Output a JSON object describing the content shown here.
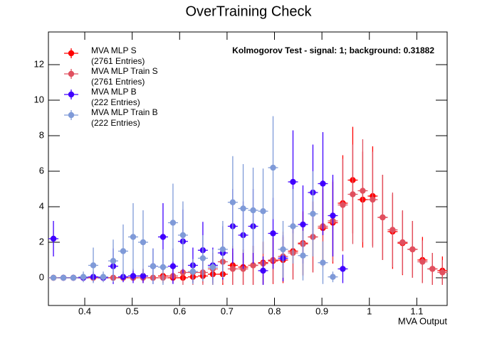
{
  "chart_data": {
    "type": "errorbar",
    "title": "OverTraining Check",
    "x_label": "MVA Output",
    "annotation": "Kolmogorov Test - signal: 1; background: 0.31882",
    "xlim": [
      0.3234,
      1.164
    ],
    "ylim": [
      -1.56,
      13.84
    ],
    "xticks": [
      0.4,
      0.5,
      0.6,
      0.7,
      0.8,
      0.9,
      1,
      1.1
    ],
    "yticks": [
      0,
      2,
      4,
      6,
      8,
      10,
      12
    ],
    "legend": "top-left",
    "x": [
      0.334,
      0.355,
      0.376,
      0.397,
      0.418,
      0.439,
      0.46,
      0.481,
      0.502,
      0.523,
      0.544,
      0.565,
      0.586,
      0.607,
      0.628,
      0.649,
      0.67,
      0.691,
      0.712,
      0.734,
      0.755,
      0.776,
      0.797,
      0.818,
      0.839,
      0.86,
      0.881,
      0.902,
      0.923,
      0.944,
      0.965,
      0.986,
      1.007,
      1.028,
      1.049,
      1.07,
      1.091,
      1.112,
      1.133,
      1.154
    ],
    "series": [
      {
        "name": "MVA MLP S",
        "entries": "(2761 Entries)",
        "color": "#ff0000",
        "values": [
          0,
          0,
          0,
          0,
          0,
          0,
          0,
          0,
          0,
          0.1,
          0,
          0.1,
          0,
          0,
          0.05,
          0.1,
          0.2,
          0.2,
          0.7,
          0.6,
          0.7,
          0.85,
          0.95,
          1.0,
          1.5,
          1.95,
          2.3,
          2.8,
          3.1,
          4.2,
          5.5,
          4.4,
          4.6,
          3.4,
          2.6,
          1.95,
          1.6,
          1.0,
          0.5,
          0.4
        ],
        "errors": [
          0,
          0,
          0,
          0,
          0,
          0,
          0,
          0,
          0,
          0.4,
          0,
          0.4,
          0,
          0,
          0.3,
          0.4,
          0.6,
          0.6,
          1.1,
          1.0,
          1.1,
          1.2,
          1.3,
          1.3,
          1.6,
          1.8,
          2.0,
          2.2,
          2.3,
          2.7,
          3.0,
          2.7,
          2.8,
          2.4,
          2.1,
          1.8,
          1.6,
          1.3,
          0.9,
          0.8
        ]
      },
      {
        "name": "MVA MLP Train S",
        "entries": "(2761 Entries)",
        "color": "#e0505f",
        "values": [
          0,
          0,
          0,
          0,
          0,
          0,
          0,
          0,
          0,
          0,
          0,
          0,
          0.1,
          0.3,
          0.3,
          0.3,
          0.5,
          0.9,
          0.5,
          0.5,
          0.7,
          0.8,
          1.0,
          1.2,
          1.4,
          1.9,
          2.3,
          2.9,
          3.2,
          4.1,
          4.7,
          4.9,
          4.4,
          3.4,
          2.7,
          2.0,
          1.6,
          0.9,
          0.5,
          0.3
        ],
        "errors": [
          0,
          0,
          0,
          0,
          0,
          0,
          0,
          0,
          0,
          0,
          0,
          0,
          0.4,
          0.7,
          0.7,
          0.7,
          0.9,
          1.2,
          0.9,
          0.9,
          1.1,
          1.2,
          1.3,
          1.4,
          1.5,
          1.8,
          2.0,
          2.2,
          2.3,
          2.6,
          2.8,
          2.9,
          2.7,
          2.4,
          2.1,
          1.8,
          1.6,
          1.2,
          0.9,
          0.7
        ]
      },
      {
        "name": "MVA MLP B",
        "entries": "(222 Entries)",
        "color": "#4000ff",
        "values": [
          2.2,
          0,
          0,
          0,
          0.05,
          0,
          0.65,
          0.05,
          0.1,
          0.1,
          0.65,
          2.3,
          0.65,
          2.05,
          0.7,
          1.55,
          0.7,
          1.4,
          2.9,
          2.4,
          2.9,
          0.4,
          2.5,
          1.1,
          5.4,
          3.0,
          4.8,
          5.3,
          3.5,
          0.5,
          null,
          null,
          null,
          null,
          null,
          null,
          null,
          null,
          null,
          null
        ],
        "errors": [
          1.0,
          0,
          0,
          0,
          0.3,
          0,
          1.0,
          0.3,
          0.4,
          0.4,
          1.0,
          1.9,
          1.0,
          1.8,
          1.0,
          1.6,
          1.0,
          1.5,
          2.1,
          1.9,
          2.1,
          0.8,
          2.0,
          1.3,
          2.9,
          2.2,
          2.7,
          2.9,
          2.3,
          0.8,
          null,
          null,
          null,
          null,
          null,
          null,
          null,
          null,
          null,
          null
        ]
      },
      {
        "name": "MVA MLP Train B",
        "entries": "(222 Entries)",
        "color": "#7f9ad8",
        "values": [
          0,
          0,
          0,
          0.05,
          0.7,
          0.05,
          0.95,
          1.5,
          2.3,
          2.0,
          0.65,
          0.6,
          3.1,
          2.4,
          0.35,
          1.1,
          0.6,
          1.6,
          4.25,
          3.9,
          3.8,
          3.75,
          6.2,
          1.6,
          2.9,
          1.25,
          3.6,
          0.85,
          0.05,
          null,
          null,
          null,
          null,
          null,
          null,
          null,
          null,
          null,
          null,
          null
        ],
        "errors": [
          0,
          0,
          0,
          0.3,
          1.0,
          0.3,
          1.2,
          1.5,
          1.9,
          1.8,
          1.0,
          1.0,
          2.2,
          1.9,
          0.7,
          1.3,
          1.0,
          1.6,
          2.6,
          2.5,
          2.4,
          2.4,
          2.9,
          1.6,
          2.1,
          1.4,
          2.4,
          1.2,
          0.3,
          null,
          null,
          null,
          null,
          null,
          null,
          null,
          null,
          null,
          null,
          null
        ]
      }
    ]
  }
}
